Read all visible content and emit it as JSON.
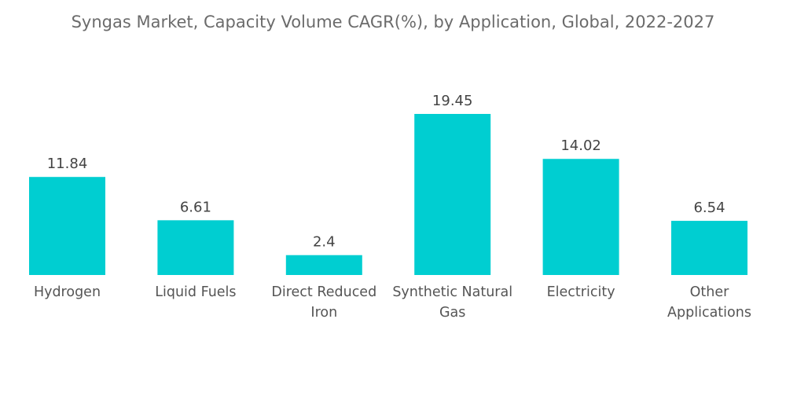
{
  "chart_data": {
    "type": "bar",
    "title": "Syngas Market, Capacity Volume CAGR(%), by Application, Global, 2022-2027",
    "categories": [
      "Hydrogen",
      "Liquid Fuels",
      "Direct Reduced Iron",
      "Synthetic Natural Gas",
      "Electricity",
      "Other Applications"
    ],
    "category_lines": [
      [
        "Hydrogen"
      ],
      [
        "Liquid Fuels"
      ],
      [
        "Direct Reduced",
        "Iron"
      ],
      [
        "Synthetic Natural",
        "Gas"
      ],
      [
        "Electricity"
      ],
      [
        "Other",
        "Applications"
      ]
    ],
    "values": [
      11.84,
      6.61,
      2.4,
      19.45,
      14.02,
      6.54
    ],
    "value_labels": [
      "11.84",
      "6.61",
      "2.4",
      "19.45",
      "14.02",
      "6.54"
    ],
    "xlabel": "",
    "ylabel": "",
    "ylim": [
      0,
      19.45
    ],
    "grid": false,
    "legend": "none",
    "bar_color": "#00CED1"
  }
}
